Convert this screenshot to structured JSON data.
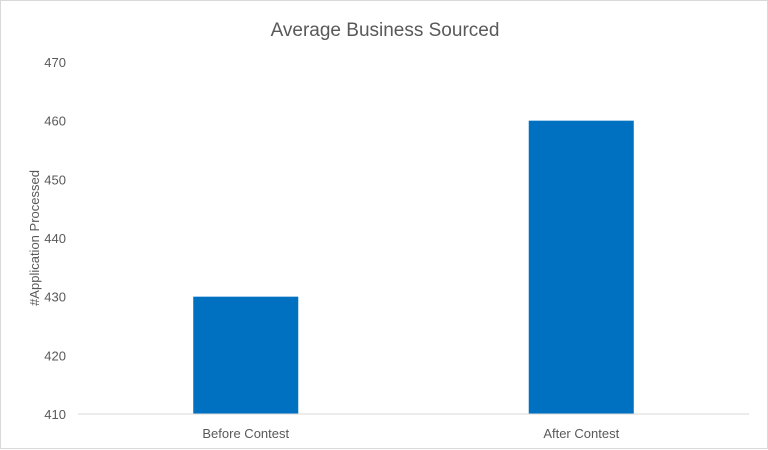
{
  "chart_data": {
    "type": "bar",
    "title": "Average Business Sourced",
    "xlabel": "",
    "ylabel": "#Application Processed",
    "categories": [
      "Before Contest",
      "After Contest"
    ],
    "values": [
      430,
      460
    ],
    "ylim": [
      410,
      470
    ],
    "yticks": [
      410,
      420,
      430,
      440,
      450,
      460,
      470
    ],
    "grid": false,
    "legend": "none",
    "colors": {
      "bar": "#0070C0",
      "axis": "#d9d9d9",
      "text": "#595959"
    }
  }
}
